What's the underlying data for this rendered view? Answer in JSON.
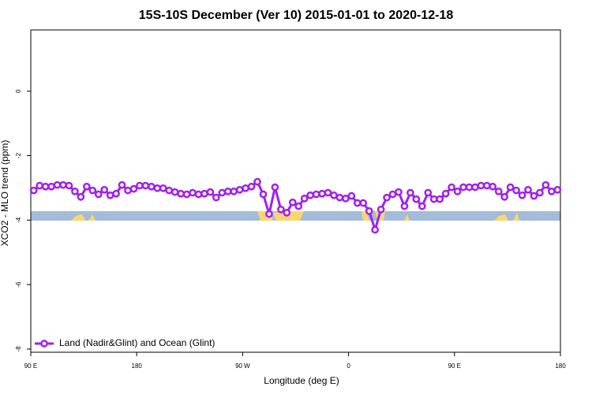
{
  "chart_data": {
    "type": "line",
    "title": "15S-10S December (Ver 10)   2015-01-01 to 2020-12-18",
    "xlabel": "Longitude (deg E)",
    "ylabel": "XCO2 - MLO trend (ppm)",
    "xlim": [
      90,
      540
    ],
    "ylim": [
      -8.1,
      1.9
    ],
    "xticks": [
      {
        "value": 90,
        "label": "90 E"
      },
      {
        "value": 180,
        "label": "180"
      },
      {
        "value": 270,
        "label": "90 W"
      },
      {
        "value": 360,
        "label": "0"
      },
      {
        "value": 450,
        "label": "90 E"
      },
      {
        "value": 540,
        "label": "180"
      }
    ],
    "yticks": [
      0,
      -2,
      -4,
      -6,
      -8
    ],
    "legend": "bottom-left",
    "x": [
      92.5,
      97.5,
      102.5,
      107.5,
      112.5,
      117.5,
      122.5,
      127.5,
      132.5,
      137.5,
      142.5,
      147.5,
      152.5,
      157.5,
      162.5,
      167.5,
      172.5,
      177.5,
      182.5,
      187.5,
      192.5,
      197.5,
      202.5,
      207.5,
      212.5,
      217.5,
      222.5,
      227.5,
      232.5,
      237.5,
      242.5,
      247.5,
      252.5,
      257.5,
      262.5,
      267.5,
      272.5,
      277.5,
      282.5,
      287.5,
      292.5,
      297.5,
      302.5,
      307.5,
      312.5,
      317.5,
      322.5,
      327.5,
      332.5,
      337.5,
      342.5,
      347.5,
      352.5,
      357.5,
      362.5,
      367.5,
      372.5,
      377.5,
      382.5,
      387.5,
      392.5,
      397.5,
      402.5,
      407.5,
      412.5,
      417.5,
      422.5,
      427.5,
      432.5,
      437.5,
      442.5,
      447.5,
      452.5,
      457.5,
      462.5,
      467.5,
      472.5,
      477.5,
      482.5,
      487.5,
      492.5,
      497.5,
      502.5,
      507.5,
      512.5,
      517.5,
      522.5,
      527.5,
      532.5,
      537.5
    ],
    "series": [
      {
        "name": "Land (Nadir&Glint) and Ocean (Glint)",
        "color": "#a020f0",
        "values": [
          -3.08,
          -2.93,
          -2.96,
          -2.96,
          -2.91,
          -2.91,
          -2.93,
          -3.11,
          -3.28,
          -2.96,
          -3.08,
          -3.2,
          -3.06,
          -3.23,
          -3.18,
          -2.91,
          -3.08,
          -3.03,
          -2.93,
          -2.93,
          -2.96,
          -3.01,
          -3.01,
          -3.08,
          -3.13,
          -3.18,
          -3.2,
          -3.15,
          -3.2,
          -3.18,
          -3.13,
          -3.3,
          -3.15,
          -3.11,
          -3.11,
          -3.06,
          -3.01,
          -2.96,
          -2.81,
          -3.2,
          -3.81,
          -2.98,
          -3.67,
          -3.77,
          -3.45,
          -3.57,
          -3.33,
          -3.23,
          -3.2,
          -3.18,
          -3.15,
          -3.23,
          -3.3,
          -3.33,
          -3.25,
          -3.47,
          -3.47,
          -3.72,
          -4.3,
          -3.67,
          -3.3,
          -3.2,
          -3.13,
          -3.57,
          -3.15,
          -3.35,
          -3.57,
          -3.15,
          -3.35,
          -3.35,
          -3.18,
          -2.98,
          -3.11,
          -2.98,
          -2.98,
          -2.98,
          -2.93,
          -2.93,
          -2.96,
          -3.11,
          -3.28,
          -2.98,
          -3.08,
          -3.23,
          -3.06,
          -3.25,
          -3.15,
          -2.91,
          -3.11,
          -3.06
        ]
      }
    ]
  }
}
